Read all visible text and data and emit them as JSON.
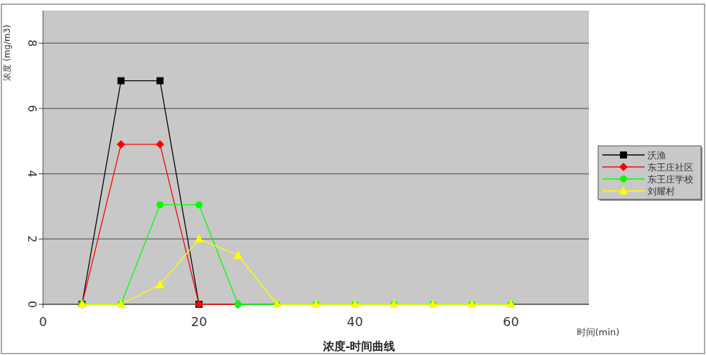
{
  "chart_data": {
    "type": "line",
    "title": "浓度-时间曲线",
    "xlabel": "时间(min)",
    "ylabel": "浓度 (mg/m3)",
    "x": [
      5,
      10,
      15,
      20,
      25,
      30,
      35,
      40,
      45,
      50,
      55,
      60
    ],
    "xlim": [
      0,
      70
    ],
    "xticks": [
      0,
      20,
      40,
      60
    ],
    "ylim": [
      0,
      9
    ],
    "yticks": [
      0,
      2,
      4,
      6,
      8
    ],
    "grid": "y",
    "legend": "right",
    "series": [
      {
        "name": "沃渔",
        "color": "#000000",
        "marker": "square",
        "values": [
          0,
          6.85,
          6.85,
          0,
          null,
          null,
          null,
          null,
          null,
          null,
          null,
          null
        ]
      },
      {
        "name": "东王庄社区",
        "color": "#ff0000",
        "marker": "diamond",
        "values": [
          0,
          4.9,
          4.9,
          0,
          0,
          null,
          null,
          null,
          null,
          null,
          null,
          null
        ]
      },
      {
        "name": "东王庄学校",
        "color": "#00ff00",
        "marker": "circle",
        "values": [
          0,
          0,
          3.05,
          3.05,
          0,
          0,
          0,
          0,
          0,
          0,
          0,
          0
        ]
      },
      {
        "name": "刘耀村",
        "color": "#ffff00",
        "marker": "triangle",
        "values": [
          0,
          0,
          0.6,
          2.0,
          1.5,
          0,
          0,
          0,
          0,
          0,
          0,
          0
        ]
      }
    ]
  }
}
